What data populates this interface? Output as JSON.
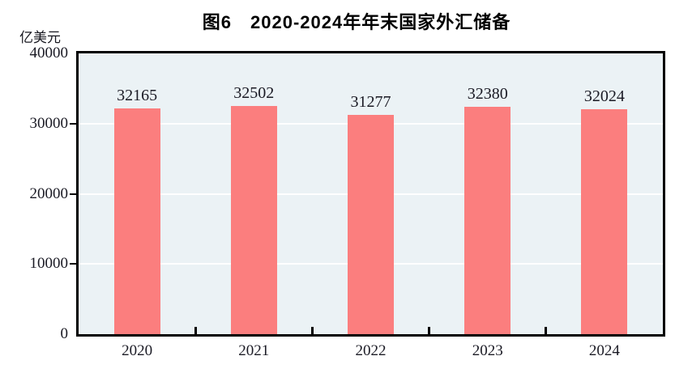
{
  "title": "图6　2020-2024年年末国家外汇储备",
  "unit_label": "亿美元",
  "colors": {
    "bar_fill": "#fb7e7e",
    "plot_background": "#ebf2f5",
    "gridline": "#ffffff",
    "axis_border": "#000000",
    "text": "#1a1a24",
    "title_text": "#000000"
  },
  "chart_data": {
    "type": "bar",
    "title": "图6　2020-2024年年末国家外汇储备",
    "ylabel": "亿美元",
    "xlabel": "",
    "categories": [
      "2020",
      "2021",
      "2022",
      "2023",
      "2024"
    ],
    "values": [
      32165,
      32502,
      31277,
      32380,
      32024
    ],
    "value_labels": [
      "32165",
      "32502",
      "31277",
      "32380",
      "32024"
    ],
    "ylim": [
      0,
      40000
    ],
    "yticks": [
      0,
      10000,
      20000,
      30000,
      40000
    ],
    "ytick_labels": [
      "0",
      "10000",
      "20000",
      "30000",
      "40000"
    ],
    "gridline_values": [
      10000,
      20000,
      30000
    ],
    "grid": "horizontal white gridlines on shaded plot area",
    "legend": "none",
    "bar_labels_position": "above bars"
  }
}
